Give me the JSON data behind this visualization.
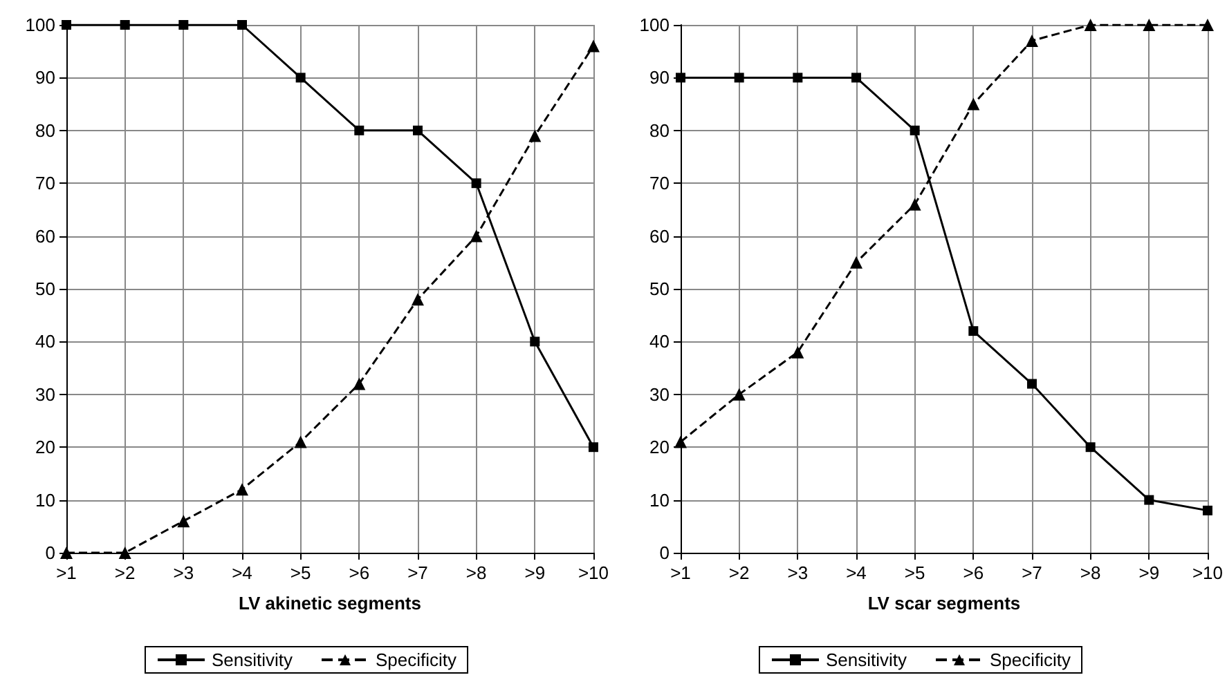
{
  "chart_data": [
    {
      "type": "line",
      "xlabel": "LV akinetic segments",
      "categories": [
        ">1",
        ">2",
        ">3",
        ">4",
        ">5",
        ">6",
        ">7",
        ">8",
        ">9",
        ">10"
      ],
      "ylim": [
        0,
        100
      ],
      "yticks": [
        0,
        10,
        20,
        30,
        40,
        50,
        60,
        70,
        80,
        90,
        100
      ],
      "grid": true,
      "legend": "bottom",
      "series": [
        {
          "name": "Sensitivity",
          "color": "#000000",
          "marker": "square",
          "line_style": "solid",
          "values": [
            100,
            100,
            100,
            100,
            90,
            80,
            80,
            70,
            40,
            20
          ]
        },
        {
          "name": "Specificity",
          "color": "#000000",
          "marker": "triangle",
          "line_style": "dashed",
          "values": [
            0,
            0,
            6,
            12,
            21,
            32,
            48,
            60,
            79,
            96
          ]
        }
      ]
    },
    {
      "type": "line",
      "xlabel": "LV scar segments",
      "categories": [
        ">1",
        ">2",
        ">3",
        ">4",
        ">5",
        ">6",
        ">7",
        ">8",
        ">9",
        ">10"
      ],
      "ylim": [
        0,
        100
      ],
      "yticks": [
        0,
        10,
        20,
        30,
        40,
        50,
        60,
        70,
        80,
        90,
        100
      ],
      "grid": true,
      "legend": "bottom",
      "series": [
        {
          "name": "Sensitivity",
          "color": "#000000",
          "marker": "square",
          "line_style": "solid",
          "values": [
            90,
            90,
            90,
            90,
            80,
            42,
            32,
            20,
            10,
            8
          ]
        },
        {
          "name": "Specificity",
          "color": "#000000",
          "marker": "triangle",
          "line_style": "dashed",
          "values": [
            21,
            30,
            38,
            55,
            66,
            85,
            97,
            100,
            100,
            100
          ]
        }
      ]
    }
  ]
}
